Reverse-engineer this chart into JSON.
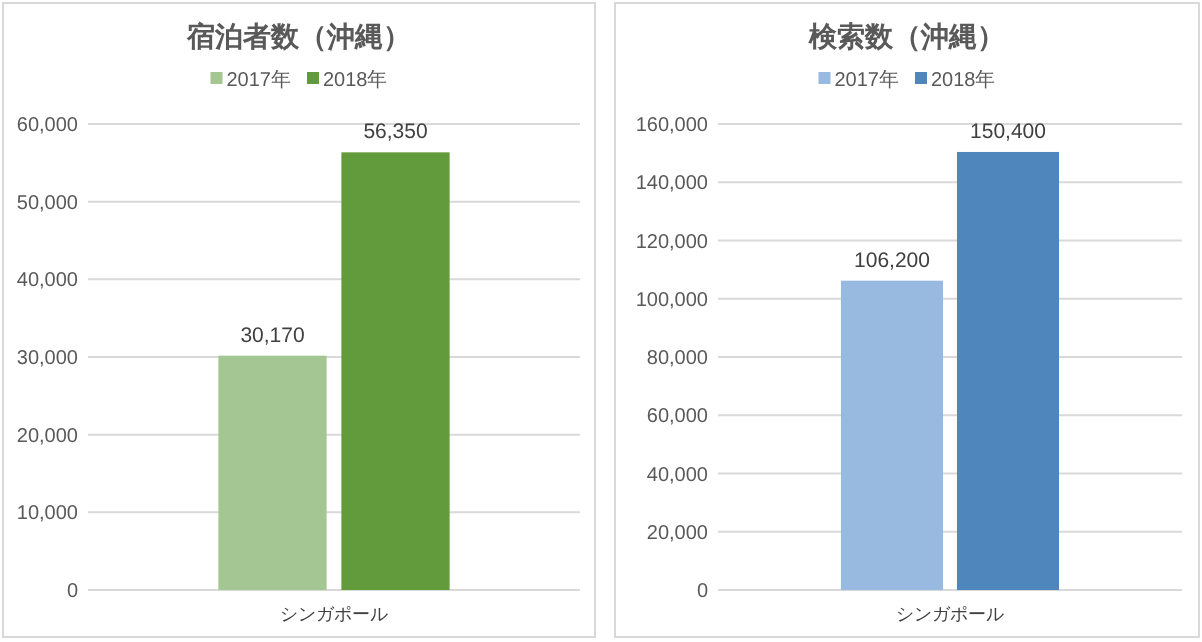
{
  "chart_data": [
    {
      "type": "bar",
      "title": "宿泊者数（沖縄）",
      "categories": [
        "シンガポール"
      ],
      "series": [
        {
          "name": "2017年",
          "color": "#a3c693",
          "values": [
            30170
          ],
          "value_labels": [
            "30,170"
          ]
        },
        {
          "name": "2018年",
          "color": "#629b3c",
          "values": [
            56350
          ],
          "value_labels": [
            "56,350"
          ]
        }
      ],
      "ylim": [
        0,
        60000
      ],
      "yticks": [
        0,
        {
          "value": 10000,
          "label": "10,000"
        },
        {
          "value": 20000,
          "label": "20,000"
        },
        {
          "value": 30000,
          "label": "30,000"
        },
        {
          "value": 40000,
          "label": "40,000"
        },
        {
          "value": 50000,
          "label": "50,000"
        },
        {
          "value": 60000,
          "label": "60,000"
        }
      ],
      "grid": "y",
      "legend": "top"
    },
    {
      "type": "bar",
      "title": "検索数（沖縄）",
      "categories": [
        "シンガポール"
      ],
      "series": [
        {
          "name": "2017年",
          "color": "#98b9e0",
          "values": [
            106200
          ],
          "value_labels": [
            "106,200"
          ]
        },
        {
          "name": "2018年",
          "color": "#4f86bb",
          "values": [
            150400
          ],
          "value_labels": [
            "150,400"
          ]
        }
      ],
      "ylim": [
        0,
        160000
      ],
      "yticks": [
        0,
        {
          "value": 20000,
          "label": "20,000"
        },
        {
          "value": 40000,
          "label": "40,000"
        },
        {
          "value": 60000,
          "label": "60,000"
        },
        {
          "value": 80000,
          "label": "80,000"
        },
        {
          "value": 100000,
          "label": "100,000"
        },
        {
          "value": 120000,
          "label": "120,000"
        },
        {
          "value": 140000,
          "label": "140,000"
        },
        {
          "value": 160000,
          "label": "160,000"
        }
      ],
      "grid": "y",
      "legend": "top"
    }
  ]
}
